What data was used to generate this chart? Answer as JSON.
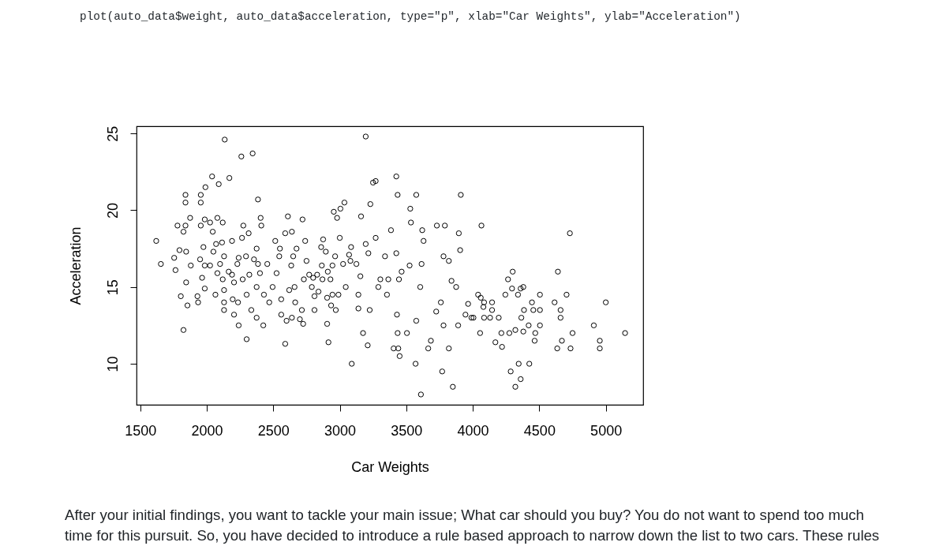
{
  "chart_data": {
    "type": "scatter",
    "xlabel": "Car Weights",
    "ylabel": "Acceleration",
    "annotations": [
      "plot(auto_data$weight, auto_data$acceleration, type=\"p\", xlab=\"Car Weights\", ylab=\"Acceleration\")",
      "After your initial findings, you want to tackle your main issue; What car should you buy? You do not want to spend too much time for this pursuit. So, you have decided to introduce a rule based approach to narrow down the list to two cars. These rules"
    ],
    "xlim": [
      1472,
      5281
    ],
    "ylim": [
      7.33,
      25.47
    ],
    "xticks": [
      1500,
      2000,
      2500,
      3000,
      3500,
      4000,
      4500,
      5000
    ],
    "yticks": [
      10,
      15,
      20,
      25
    ],
    "grid": false,
    "marker": "circle",
    "series": [
      {
        "color": "#000000",
        "x": [
          2135,
          2260,
          2345,
          2040,
          2090,
          2170,
          1990,
          1840,
          1840,
          1955,
          1955,
          2385,
          1780,
          1840,
          1825,
          1875,
          1955,
          1985,
          2025,
          2080,
          2120,
          2405,
          2410,
          2275,
          2610,
          2720,
          1620,
          1655,
          1795,
          1845,
          1755,
          1765,
          1880,
          1845,
          1805,
          1855,
          1825,
          1930,
          1935,
          1950,
          1975,
          2045,
          2070,
          2050,
          2115,
          2190,
          2130,
          2100,
          2165,
          1985,
          2025,
          1965,
          1985,
          2080,
          2120,
          2065,
          2130,
          2130,
          2130,
          2205,
          2195,
          2235,
          2205,
          2190,
          2240,
          2230,
          2265,
          2315,
          2295,
          2320,
          2270,
          2300,
          2240,
          2300,
          2335,
          2375,
          2425,
          2355,
          2375,
          2385,
          2400,
          2375,
          2430,
          2455,
          2470,
          2515,
          2550,
          2545,
          2525,
          2495,
          2590,
          2560,
          2560,
          2600,
          2640,
          2665,
          2715,
          2700,
          2725,
          2590,
          2640,
          2650,
          2675,
          2635,
          2660,
          2620,
          2740,
          2730,
          3195,
          3250,
          3270,
          3425,
          3435,
          3575,
          3910,
          3530,
          3035,
          3005,
          2955,
          2980,
          3230,
          3160,
          3385,
          3535,
          3730,
          3790,
          3620,
          3895,
          3905,
          3630,
          3780,
          3820,
          3615,
          3605,
          3525,
          3465,
          3425,
          3445,
          3340,
          3270,
          3195,
          3215,
          3155,
          3305,
          3365,
          3290,
          3355,
          3140,
          3140,
          3225,
          3175,
          3210,
          3090,
          3430,
          3435,
          3505,
          3405,
          3440,
          3450,
          3575,
          3570,
          3610,
          3685,
          3665,
          3760,
          3725,
          3780,
          3820,
          3770,
          3850,
          3840,
          3875,
          3965,
          3945,
          3990,
          3890,
          2875,
          2860,
          2895,
          2965,
          3000,
          3085,
          3070,
          3025,
          3080,
          3125,
          2865,
          2945,
          2910,
          2750,
          2770,
          2800,
          2830,
          2870,
          2930,
          2790,
          2840,
          2810,
          2905,
          2945,
          2990,
          3045,
          2935,
          2970,
          2810,
          2905,
          2915,
          4065,
          4730,
          4640,
          4300,
          4265,
          4295,
          4360,
          4380,
          4340,
          4245,
          4040,
          4060,
          4085,
          4080,
          4145,
          4145,
          4445,
          4505,
          4385,
          4455,
          4505,
          4005,
          4085,
          4130,
          4195,
          4365,
          4615,
          4705,
          4660,
          4660,
          5000,
          4420,
          4505,
          4910,
          4055,
          4215,
          4275,
          4320,
          4380,
          4470,
          4750,
          5145,
          4170,
          4220,
          4465,
          4670,
          4635,
          4735,
          4955,
          4955,
          4345,
          4425,
          4285,
          4360,
          4320
        ],
        "values": [
          24.6,
          23.5,
          23.7,
          22.2,
          21.7,
          22.1,
          21.5,
          21.0,
          20.5,
          21.0,
          20.5,
          20.7,
          19.0,
          19.0,
          18.6,
          19.5,
          19.0,
          19.4,
          19.2,
          19.5,
          19.2,
          19.5,
          19.0,
          19.0,
          19.6,
          19.4,
          18.0,
          16.5,
          17.4,
          17.3,
          16.9,
          16.1,
          16.4,
          15.3,
          14.4,
          13.8,
          12.2,
          14.4,
          14.0,
          16.8,
          17.6,
          18.6,
          17.8,
          17.3,
          17.9,
          18.0,
          17.0,
          16.5,
          16.0,
          16.4,
          16.4,
          15.6,
          14.9,
          15.9,
          15.5,
          14.5,
          14.8,
          14.0,
          13.5,
          13.2,
          14.2,
          14.0,
          15.3,
          15.8,
          16.9,
          16.5,
          18.2,
          18.5,
          17.0,
          15.8,
          15.5,
          14.5,
          12.5,
          11.6,
          13.5,
          13.0,
          12.5,
          16.8,
          17.5,
          16.5,
          15.9,
          15.0,
          14.5,
          16.5,
          14.0,
          18.0,
          17.5,
          17.0,
          15.9,
          15.0,
          11.3,
          14.2,
          13.2,
          12.8,
          13.0,
          14.0,
          13.5,
          12.9,
          12.6,
          18.5,
          18.6,
          17.0,
          17.5,
          16.4,
          15.0,
          14.8,
          18.0,
          15.5,
          24.8,
          21.8,
          21.9,
          22.2,
          21.0,
          21.0,
          21.0,
          20.1,
          20.5,
          20.1,
          19.9,
          19.5,
          20.4,
          19.6,
          18.7,
          19.2,
          19.0,
          19.0,
          18.7,
          18.5,
          17.4,
          18.0,
          17.0,
          16.7,
          16.5,
          15.0,
          16.4,
          16.0,
          17.2,
          15.5,
          17.0,
          18.2,
          17.8,
          17.2,
          15.7,
          15.5,
          15.5,
          15.0,
          14.5,
          14.5,
          13.6,
          13.5,
          12.0,
          11.2,
          10.0,
          13.2,
          12.0,
          12.0,
          11.0,
          11.0,
          10.5,
          12.8,
          10.0,
          8.0,
          11.5,
          11.0,
          14.0,
          13.4,
          12.5,
          11.0,
          9.5,
          8.5,
          15.4,
          15.0,
          13.9,
          13.2,
          13.0,
          12.5,
          18.1,
          17.6,
          17.3,
          17.0,
          18.2,
          17.6,
          17.1,
          16.5,
          16.7,
          16.5,
          16.4,
          16.4,
          16.0,
          16.7,
          15.8,
          15.6,
          15.8,
          15.5,
          15.5,
          15.0,
          14.7,
          14.4,
          14.3,
          14.5,
          14.5,
          15.0,
          13.8,
          13.5,
          13.5,
          12.6,
          11.4,
          19.0,
          18.5,
          16.0,
          16.0,
          15.5,
          14.9,
          14.9,
          15.0,
          14.5,
          14.5,
          14.5,
          14.3,
          14.0,
          13.7,
          14.0,
          13.5,
          14.0,
          14.5,
          13.5,
          13.5,
          13.5,
          13.0,
          13.0,
          13.0,
          13.0,
          13.0,
          14.0,
          14.5,
          13.5,
          13.0,
          14.0,
          12.5,
          12.5,
          12.5,
          12.0,
          12.0,
          12.0,
          12.2,
          12.1,
          12.0,
          12.0,
          12.0,
          11.4,
          11.1,
          11.5,
          11.5,
          11.0,
          11.0,
          11.5,
          11.0,
          10.0,
          10.0,
          9.5,
          9.0,
          8.5
        ]
      }
    ]
  }
}
